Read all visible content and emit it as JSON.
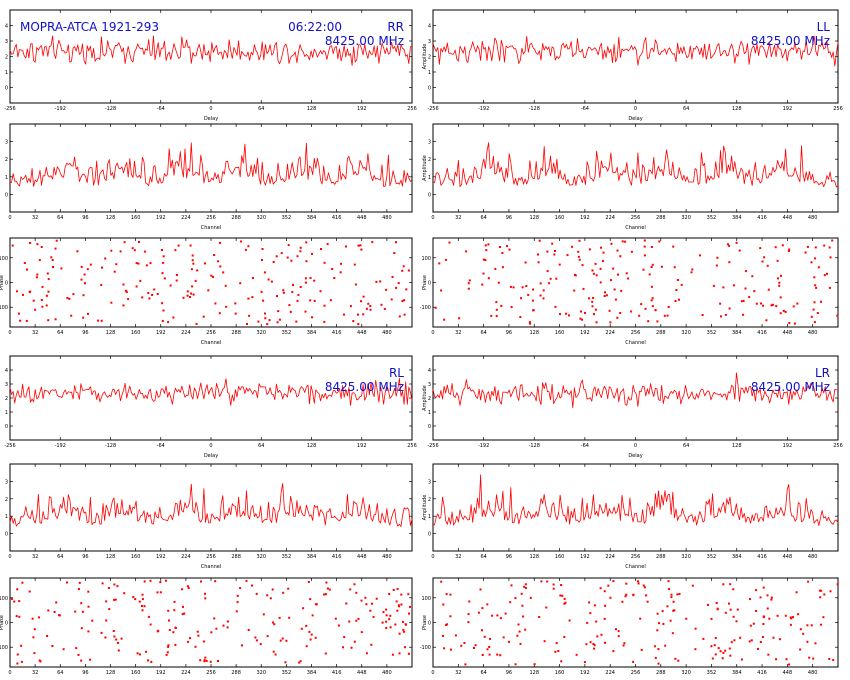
{
  "figure": {
    "source_label": "MOPRA-ATCA 1921-293",
    "time": "06:22:00",
    "accent_color": "#ff0000",
    "annotation_color": "#1010c8"
  },
  "chart_data": [
    {
      "type": "line",
      "block": "RR",
      "row": "delay",
      "label": "RR",
      "frequency": "8425.00 MHz",
      "show_source": true,
      "xlabel": "Delay",
      "ylabel": "",
      "xlim": [
        -256,
        256
      ],
      "ylim": [
        -1,
        5
      ],
      "xticks": [
        -256,
        -192,
        -128,
        -64,
        0,
        64,
        128,
        192,
        256
      ],
      "yticks": [
        0,
        1,
        2,
        3,
        4
      ],
      "series": [
        {
          "y": []
        }
      ]
    },
    {
      "type": "line",
      "block": "LL",
      "row": "delay",
      "label": "LL",
      "frequency": "8425.00 MHz",
      "xlabel": "Delay",
      "ylabel": "Amplitude",
      "xlim": [
        -256,
        256
      ],
      "ylim": [
        -1,
        5
      ],
      "xticks": [
        -256,
        -192,
        -128,
        -64,
        0,
        64,
        128,
        192,
        256
      ],
      "yticks": [
        0,
        1,
        2,
        3,
        4
      ],
      "series": [
        {
          "y": []
        }
      ]
    },
    {
      "type": "line",
      "block": "RR",
      "row": "channel",
      "xlabel": "Channel",
      "ylabel": "",
      "xlim": [
        0,
        512
      ],
      "ylim": [
        -1,
        4
      ],
      "xticks": [
        0,
        32,
        64,
        96,
        128,
        160,
        192,
        224,
        256,
        288,
        320,
        352,
        384,
        416,
        448,
        480
      ],
      "yticks": [
        0,
        1,
        2,
        3
      ],
      "series": [
        {
          "y": []
        }
      ]
    },
    {
      "type": "line",
      "block": "LL",
      "row": "channel",
      "xlabel": "Channel",
      "ylabel": "Amplitude",
      "xlim": [
        0,
        512
      ],
      "ylim": [
        -1,
        4
      ],
      "xticks": [
        0,
        32,
        64,
        96,
        128,
        160,
        192,
        224,
        256,
        288,
        320,
        352,
        384,
        416,
        448,
        480
      ],
      "yticks": [
        0,
        1,
        2,
        3
      ],
      "series": [
        {
          "y": []
        }
      ]
    },
    {
      "type": "scatter",
      "block": "RR",
      "row": "phase",
      "xlabel": "Channel",
      "ylabel": "Phase",
      "xlim": [
        0,
        512
      ],
      "ylim": [
        -180,
        180
      ],
      "xticks": [
        0,
        32,
        64,
        96,
        128,
        160,
        192,
        224,
        256,
        288,
        320,
        352,
        384,
        416,
        448,
        480
      ],
      "yticks": [
        -100,
        0,
        100
      ],
      "series": [
        {
          "x": [],
          "y": []
        }
      ]
    },
    {
      "type": "scatter",
      "block": "LL",
      "row": "phase",
      "xlabel": "Channel",
      "ylabel": "Phase",
      "xlim": [
        0,
        512
      ],
      "ylim": [
        -180,
        180
      ],
      "xticks": [
        0,
        32,
        64,
        96,
        128,
        160,
        192,
        224,
        256,
        288,
        320,
        352,
        384,
        416,
        448,
        480
      ],
      "yticks": [
        -100,
        0,
        100
      ],
      "series": [
        {
          "x": [],
          "y": []
        }
      ]
    },
    {
      "type": "line",
      "block": "RL",
      "row": "delay",
      "label": "RL",
      "frequency": "8425.00 MHz",
      "xlabel": "Delay",
      "ylabel": "",
      "xlim": [
        -256,
        256
      ],
      "ylim": [
        -1,
        5
      ],
      "xticks": [
        -256,
        -192,
        -128,
        -64,
        0,
        64,
        128,
        192,
        256
      ],
      "yticks": [
        0,
        1,
        2,
        3,
        4
      ],
      "series": [
        {
          "y": []
        }
      ]
    },
    {
      "type": "line",
      "block": "LR",
      "row": "delay",
      "label": "LR",
      "frequency": "8425.00 MHz",
      "xlabel": "Delay",
      "ylabel": "Amplitude",
      "xlim": [
        -256,
        256
      ],
      "ylim": [
        -1,
        5
      ],
      "xticks": [
        -256,
        -192,
        -128,
        -64,
        0,
        64,
        128,
        192,
        256
      ],
      "yticks": [
        0,
        1,
        2,
        3,
        4
      ],
      "series": [
        {
          "y": []
        }
      ]
    },
    {
      "type": "line",
      "block": "RL",
      "row": "channel",
      "xlabel": "Channel",
      "ylabel": "",
      "xlim": [
        0,
        512
      ],
      "ylim": [
        -1,
        4
      ],
      "xticks": [
        0,
        32,
        64,
        96,
        128,
        160,
        192,
        224,
        256,
        288,
        320,
        352,
        384,
        416,
        448,
        480
      ],
      "yticks": [
        0,
        1,
        2,
        3
      ],
      "series": [
        {
          "y": []
        }
      ]
    },
    {
      "type": "line",
      "block": "LR",
      "row": "channel",
      "xlabel": "Channel",
      "ylabel": "Amplitude",
      "xlim": [
        0,
        512
      ],
      "ylim": [
        -1,
        4
      ],
      "xticks": [
        0,
        32,
        64,
        96,
        128,
        160,
        192,
        224,
        256,
        288,
        320,
        352,
        384,
        416,
        448,
        480
      ],
      "yticks": [
        0,
        1,
        2,
        3
      ],
      "series": [
        {
          "y": []
        }
      ]
    },
    {
      "type": "scatter",
      "block": "RL",
      "row": "phase",
      "xlabel": "Channel",
      "ylabel": "Phase",
      "xlim": [
        0,
        512
      ],
      "ylim": [
        -180,
        180
      ],
      "xticks": [
        0,
        32,
        64,
        96,
        128,
        160,
        192,
        224,
        256,
        288,
        320,
        352,
        384,
        416,
        448,
        480
      ],
      "yticks": [
        -100,
        0,
        100
      ],
      "series": [
        {
          "x": [],
          "y": []
        }
      ]
    },
    {
      "type": "scatter",
      "block": "LR",
      "row": "phase",
      "xlabel": "Channel",
      "ylabel": "Phase",
      "xlim": [
        0,
        512
      ],
      "ylim": [
        -180,
        180
      ],
      "xticks": [
        0,
        32,
        64,
        96,
        128,
        160,
        192,
        224,
        256,
        288,
        320,
        352,
        384,
        416,
        448,
        480
      ],
      "yticks": [
        -100,
        0,
        100
      ],
      "series": [
        {
          "x": [],
          "y": []
        }
      ]
    }
  ]
}
